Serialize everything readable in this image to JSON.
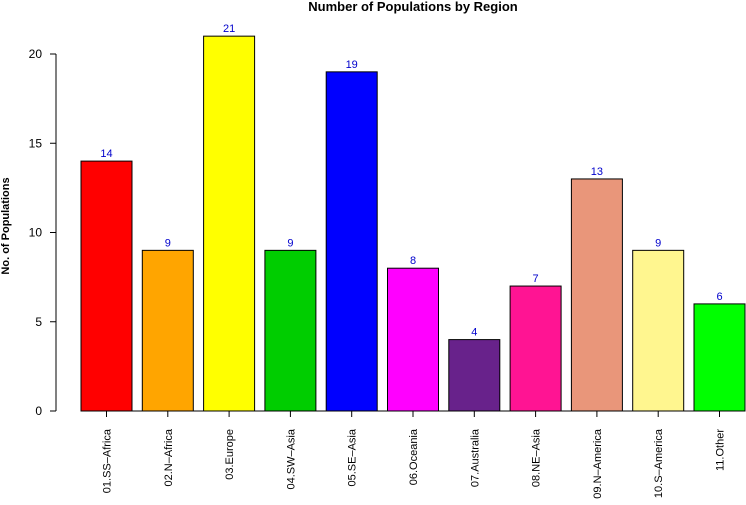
{
  "chart_data": {
    "type": "bar",
    "title": "Number of Populations by Region",
    "xlabel": "",
    "ylabel": "No. of Populations",
    "ylim": [
      0,
      22
    ],
    "yticks": [
      0,
      5,
      10,
      15,
      20
    ],
    "grid": false,
    "legend": "none",
    "value_label_color": "#0000cc",
    "categories": [
      "01.SS–Africa",
      "02.N–Africa",
      "03.Europe",
      "04.SW–Asia",
      "05.SE–Asia",
      "06.Oceania",
      "07.Australia",
      "08.NE–Asia",
      "09.N–America",
      "10.S–America",
      "11.Other"
    ],
    "values": [
      14,
      9,
      21,
      9,
      19,
      8,
      4,
      7,
      13,
      9,
      6
    ],
    "colors": [
      "#ff0000",
      "#ffa500",
      "#ffff00",
      "#00cd00",
      "#0000ff",
      "#ff00ff",
      "#68228b",
      "#ff1493",
      "#e9967a",
      "#fff68f",
      "#00ff00"
    ]
  }
}
